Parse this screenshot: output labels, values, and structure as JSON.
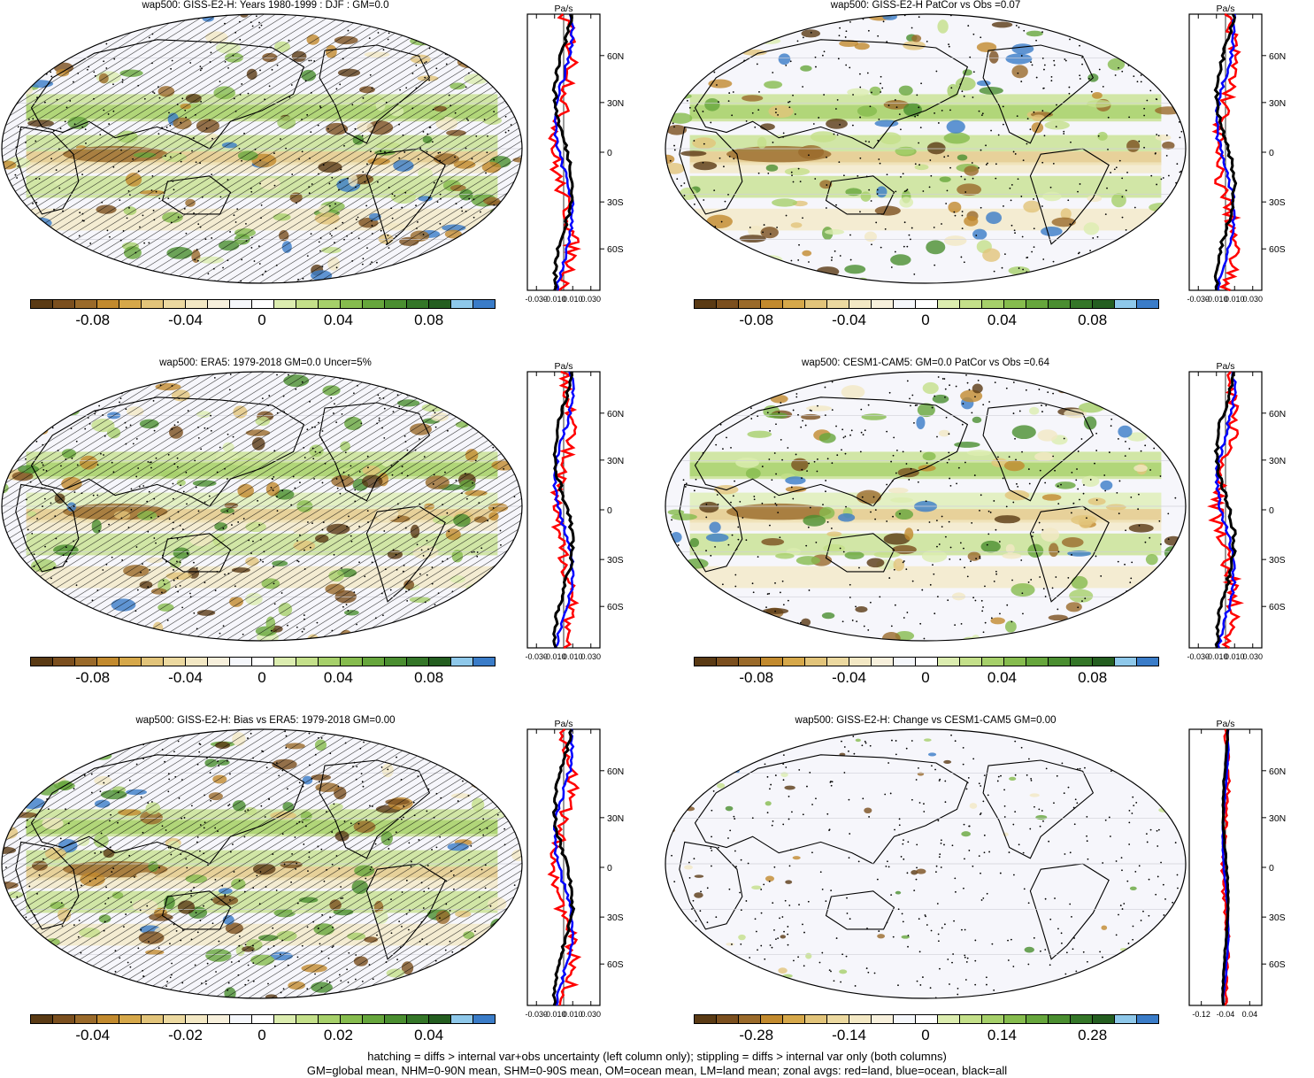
{
  "panels": [
    {
      "title": "wap500: GISS-E2-H: Years 1980-1999 : DJF : GM=0.0",
      "hatched": true,
      "zonal_ticks": [
        "-0.030",
        "-0.010",
        "0.010",
        "0.030"
      ],
      "colorbar_labels": [
        "-0.08",
        "-0.04",
        "0",
        "0.04",
        "0.08"
      ]
    },
    {
      "title": "wap500: GISS-E2-H PatCor vs Obs =0.07",
      "hatched": false,
      "zonal_ticks": [
        "-0.030",
        "-0.010",
        "0.010",
        "0.030"
      ],
      "colorbar_labels": [
        "-0.08",
        "-0.04",
        "0",
        "0.04",
        "0.08"
      ]
    },
    {
      "title": "wap500: ERA5: 1979-2018 GM=0.0 Uncer=5%",
      "hatched": true,
      "zonal_ticks": [
        "-0.030",
        "-0.010",
        "0.010",
        "0.030"
      ],
      "colorbar_labels": [
        "-0.08",
        "-0.04",
        "0",
        "0.04",
        "0.08"
      ]
    },
    {
      "title": "wap500: CESM1-CAM5: GM=0.0 PatCor vs Obs =0.64",
      "hatched": false,
      "zonal_ticks": [
        "-0.030",
        "-0.010",
        "0.010",
        "0.030"
      ],
      "colorbar_labels": [
        "-0.08",
        "-0.04",
        "0",
        "0.04",
        "0.08"
      ]
    },
    {
      "title": "wap500: GISS-E2-H: Bias vs ERA5: 1979-2018 GM=0.00",
      "hatched": true,
      "zonal_ticks": [
        "-0.030",
        "-0.010",
        "0.010",
        "0.030"
      ],
      "colorbar_labels": [
        "-0.04",
        "-0.02",
        "0",
        "0.02",
        "0.04"
      ]
    },
    {
      "title": "wap500: GISS-E2-H: Change vs CESM1-CAM5 GM=0.00",
      "hatched": false,
      "zonal_ticks": [
        "-0.12",
        "-0.04",
        "0.04"
      ],
      "colorbar_labels": [
        "-0.28",
        "-0.14",
        "0",
        "0.14",
        "0.28"
      ]
    }
  ],
  "zonal_units": "Pa/s",
  "lat_labels": [
    "60N",
    "30N",
    "0",
    "30S",
    "60S"
  ],
  "colorbar_colors": [
    "#5a3a14",
    "#7b4f1e",
    "#9a6a2a",
    "#c28a2e",
    "#d6a84a",
    "#e2c47a",
    "#ecd9a0",
    "#f3e8c4",
    "#f7f0dc",
    "#f5f7fb",
    "#ffffff",
    "#dcedb0",
    "#c4e08a",
    "#a6d06a",
    "#86bc4e",
    "#66a63c",
    "#4a8e30",
    "#347628",
    "#245e20",
    "#8ec8ea",
    "#3a7cc8"
  ],
  "line_colors": {
    "land": "#ff0000",
    "ocean": "#0000ff",
    "all": "#000000"
  },
  "footer": {
    "line1": "hatching = diffs > internal var+obs uncertainty (left column only); stippling = diffs > internal var only (both columns)",
    "line2": "GM=global mean, NHM=0-90N mean, SHM=0-90S mean, OM=ocean mean, LM=land mean; zonal avgs: red=land, blue=ocean, black=all"
  }
}
